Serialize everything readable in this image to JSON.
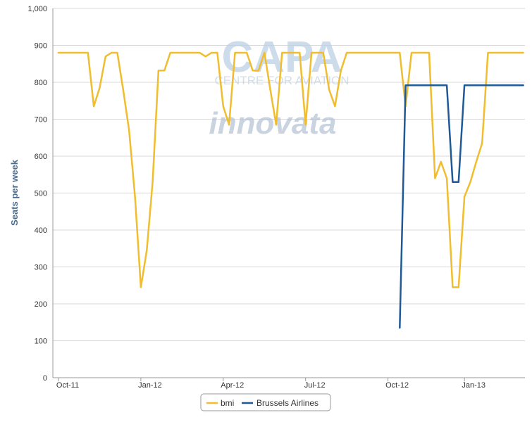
{
  "chart_data": {
    "type": "line",
    "title": "",
    "xlabel": "",
    "ylabel": "Seats per week",
    "ylim": [
      0,
      1000
    ],
    "y_ticks": [
      "0",
      "100",
      "200",
      "300",
      "400",
      "500",
      "600",
      "700",
      "800",
      "900",
      "1,000"
    ],
    "x_ticks": [
      "Oct-11",
      "Jan-12",
      "Apr-12",
      "Jul-12",
      "Oct-12",
      "Jan-13"
    ],
    "x_unit": "week index (weekly schedule, Oct-11 tick = 0)",
    "grid": true,
    "legend_position": "bottom-center",
    "series": [
      {
        "name": "bmi",
        "color": "#f0bd2e",
        "values": [
          [
            0,
            880
          ],
          [
            1,
            880
          ],
          [
            2,
            880
          ],
          [
            3,
            880
          ],
          [
            4,
            880
          ],
          [
            5,
            880
          ],
          [
            6,
            735
          ],
          [
            7,
            785
          ],
          [
            8,
            870
          ],
          [
            9,
            880
          ],
          [
            10,
            880
          ],
          [
            11,
            780
          ],
          [
            12,
            670
          ],
          [
            13,
            490
          ],
          [
            14,
            245
          ],
          [
            15,
            345
          ],
          [
            16,
            530
          ],
          [
            17,
            832
          ],
          [
            18,
            832
          ],
          [
            19,
            880
          ],
          [
            20,
            880
          ],
          [
            21,
            880
          ],
          [
            22,
            880
          ],
          [
            23,
            880
          ],
          [
            24,
            880
          ],
          [
            25,
            870
          ],
          [
            26,
            880
          ],
          [
            27,
            880
          ],
          [
            28,
            735
          ],
          [
            29,
            685
          ],
          [
            30,
            880
          ],
          [
            31,
            880
          ],
          [
            32,
            880
          ],
          [
            33,
            832
          ],
          [
            34,
            832
          ],
          [
            35,
            880
          ],
          [
            36,
            780
          ],
          [
            37,
            685
          ],
          [
            38,
            880
          ],
          [
            39,
            880
          ],
          [
            40,
            880
          ],
          [
            41,
            880
          ],
          [
            42,
            685
          ],
          [
            43,
            880
          ],
          [
            44,
            880
          ],
          [
            45,
            880
          ],
          [
            46,
            780
          ],
          [
            47,
            735
          ],
          [
            48,
            832
          ],
          [
            49,
            880
          ],
          [
            50,
            880
          ],
          [
            51,
            880
          ],
          [
            52,
            880
          ],
          [
            53,
            880
          ],
          [
            54,
            880
          ],
          [
            55,
            880
          ],
          [
            56,
            880
          ],
          [
            57,
            880
          ],
          [
            58,
            880
          ],
          [
            59,
            735
          ],
          [
            60,
            880
          ],
          [
            61,
            880
          ],
          [
            62,
            880
          ],
          [
            63,
            880
          ],
          [
            64,
            540
          ],
          [
            65,
            585
          ],
          [
            66,
            540
          ],
          [
            67,
            245
          ],
          [
            68,
            245
          ],
          [
            69,
            490
          ],
          [
            70,
            530
          ],
          [
            71,
            585
          ],
          [
            72,
            635
          ],
          [
            73,
            880
          ],
          [
            74,
            880
          ],
          [
            75,
            880
          ],
          [
            76,
            880
          ],
          [
            77,
            880
          ],
          [
            78,
            880
          ],
          [
            79,
            880
          ]
        ]
      },
      {
        "name": "Brussels Airlines",
        "color": "#1f5a96",
        "values": [
          [
            58,
            135
          ],
          [
            59,
            792
          ],
          [
            60,
            792
          ],
          [
            61,
            792
          ],
          [
            62,
            792
          ],
          [
            63,
            792
          ],
          [
            64,
            792
          ],
          [
            65,
            792
          ],
          [
            66,
            792
          ],
          [
            67,
            530
          ],
          [
            68,
            530
          ],
          [
            69,
            792
          ],
          [
            70,
            792
          ],
          [
            71,
            792
          ],
          [
            72,
            792
          ],
          [
            73,
            792
          ],
          [
            74,
            792
          ],
          [
            75,
            792
          ],
          [
            76,
            792
          ],
          [
            77,
            792
          ],
          [
            78,
            792
          ],
          [
            79,
            792
          ]
        ]
      }
    ]
  },
  "watermark": {
    "brand": "CAPA",
    "brand_sub": "CENTRE FOR AVIATION",
    "partner": "innovata"
  },
  "colors": {
    "grid": "#d8d8d8",
    "axis": "#999999",
    "bmi": "#f0bd2e",
    "brussels": "#1f5a96"
  }
}
